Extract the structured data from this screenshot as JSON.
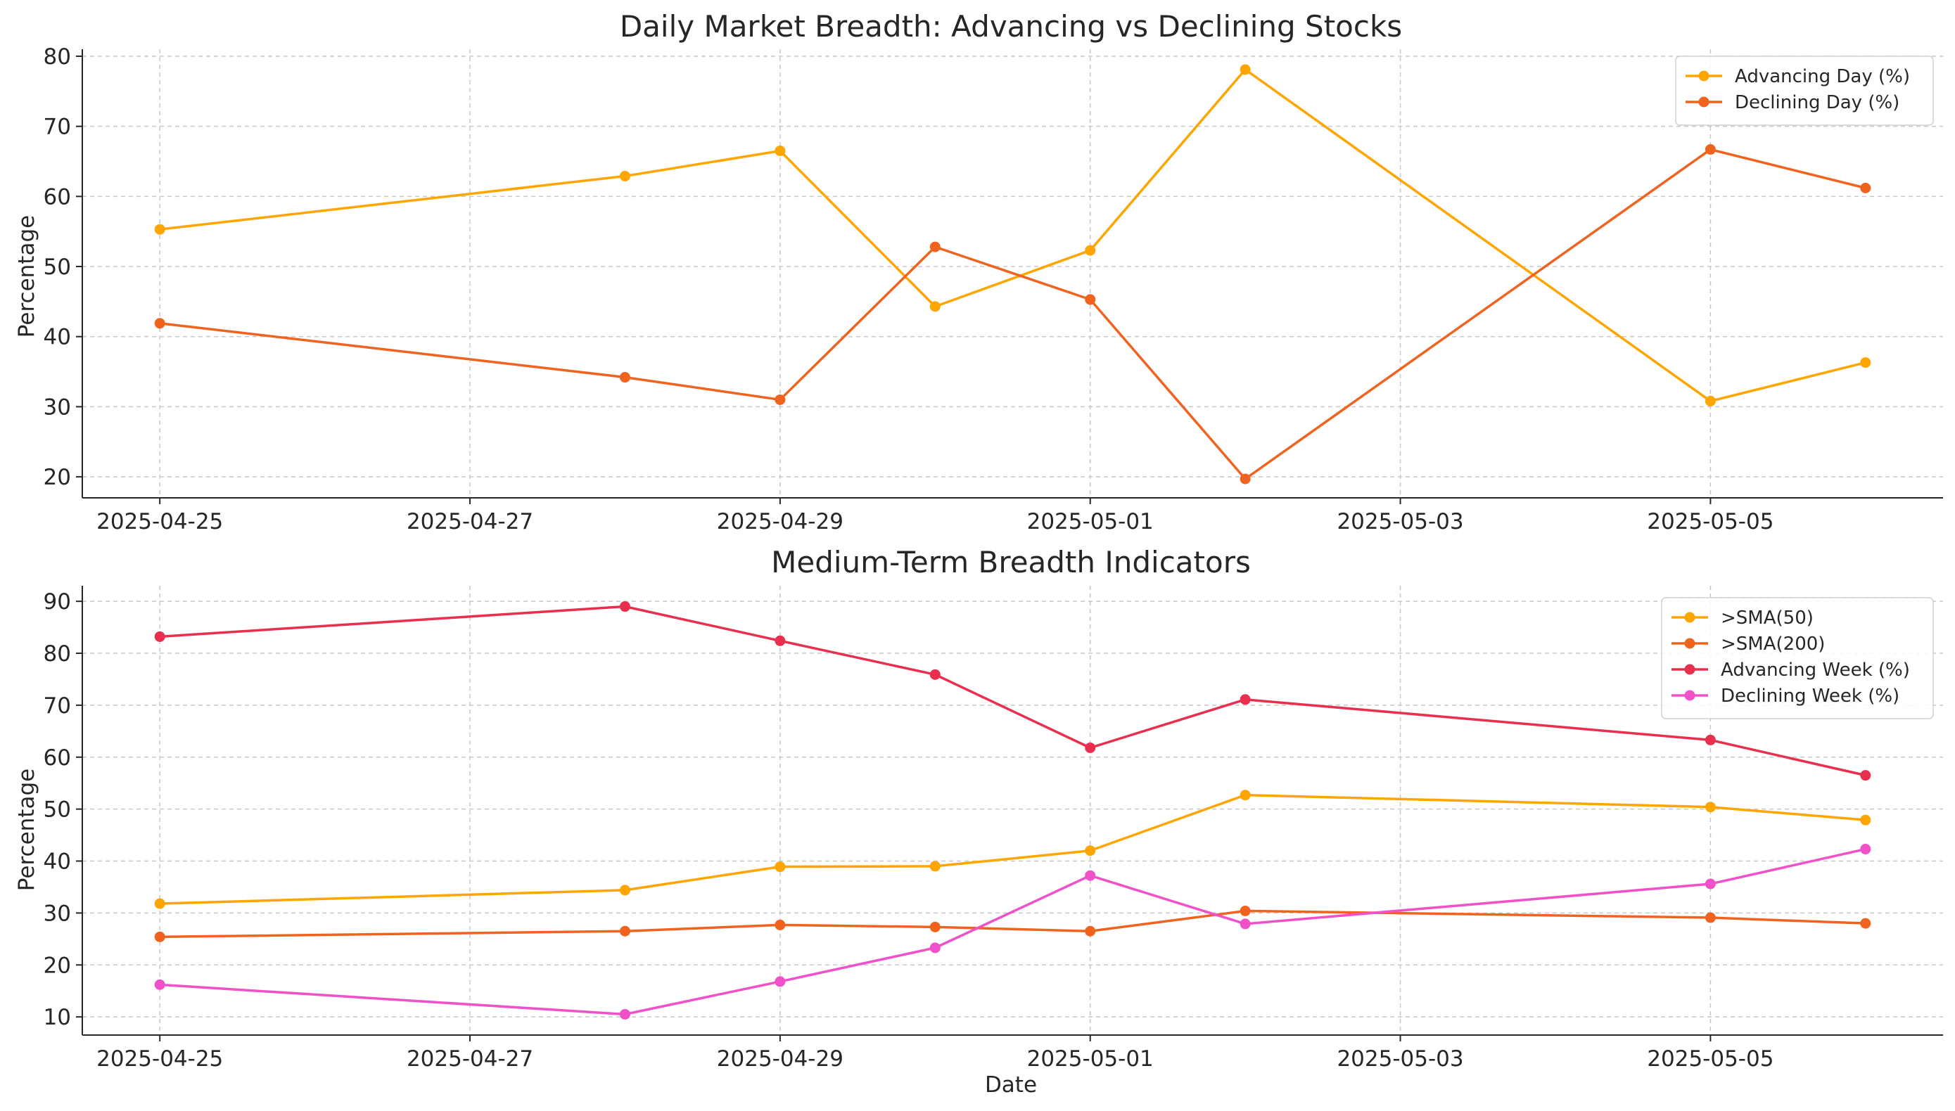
{
  "chart_data": [
    {
      "type": "line",
      "title": "Daily Market Breadth: Advancing vs Declining Stocks",
      "xlabel": "",
      "ylabel": "Percentage",
      "grid": true,
      "legend_position": "top-right",
      "x": [
        "2025-04-25",
        "2025-04-28",
        "2025-04-29",
        "2025-04-30",
        "2025-05-01",
        "2025-05-02",
        "2025-05-05",
        "2025-05-06"
      ],
      "x_ticks": [
        "2025-04-25",
        "2025-04-27",
        "2025-04-29",
        "2025-05-01",
        "2025-05-03",
        "2025-05-05"
      ],
      "y_ticks": [
        20,
        30,
        40,
        50,
        60,
        70,
        80
      ],
      "ylim": [
        17,
        81
      ],
      "series": [
        {
          "name": "Advancing Day (%)",
          "color": "#FFA500",
          "values": [
            55.3,
            62.9,
            66.5,
            44.3,
            52.3,
            78.1,
            30.8,
            36.3
          ]
        },
        {
          "name": "Declining Day (%)",
          "color": "#F0631E",
          "values": [
            41.9,
            34.2,
            31.0,
            52.8,
            45.3,
            19.7,
            66.7,
            61.2
          ]
        }
      ]
    },
    {
      "type": "line",
      "title": "Medium-Term Breadth Indicators",
      "xlabel": "Date",
      "ylabel": "Percentage",
      "grid": true,
      "legend_position": "top-right",
      "x": [
        "2025-04-25",
        "2025-04-28",
        "2025-04-29",
        "2025-04-30",
        "2025-05-01",
        "2025-05-02",
        "2025-05-05",
        "2025-05-06"
      ],
      "x_ticks": [
        "2025-04-25",
        "2025-04-27",
        "2025-04-29",
        "2025-05-01",
        "2025-05-03",
        "2025-05-05"
      ],
      "y_ticks": [
        10,
        20,
        30,
        40,
        50,
        60,
        70,
        80,
        90
      ],
      "ylim": [
        6.5,
        93
      ],
      "series": [
        {
          "name": ">SMA(50)",
          "color": "#FFA500",
          "values": [
            31.8,
            34.4,
            38.9,
            39.0,
            42.0,
            52.7,
            50.4,
            47.9
          ]
        },
        {
          "name": ">SMA(200)",
          "color": "#F0631E",
          "values": [
            25.4,
            26.5,
            27.7,
            27.3,
            26.5,
            30.4,
            29.1,
            28.0
          ]
        },
        {
          "name": "Advancing Week (%)",
          "color": "#E8304E",
          "values": [
            83.2,
            89.0,
            82.4,
            75.9,
            61.8,
            71.1,
            63.3,
            56.5
          ]
        },
        {
          "name": "Declining Week (%)",
          "color": "#F050C8",
          "values": [
            16.2,
            10.5,
            16.8,
            23.3,
            37.2,
            27.9,
            35.6,
            42.3
          ]
        }
      ]
    }
  ]
}
